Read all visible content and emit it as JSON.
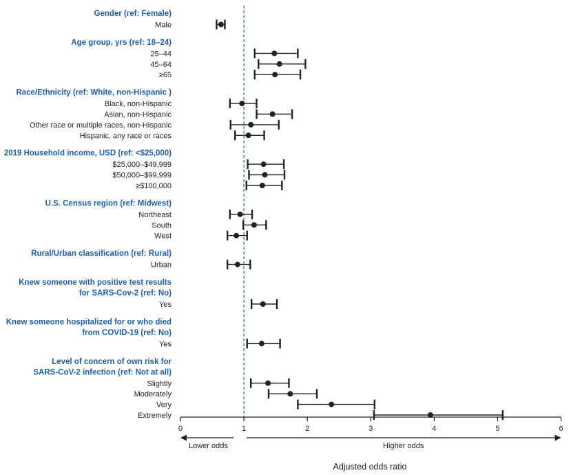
{
  "chart_data": {
    "type": "scatter",
    "subtype": "forest-plot",
    "xlabel": "Adjusted odds ratio",
    "xlim": [
      0,
      6
    ],
    "xticks": [
      0,
      1,
      2,
      3,
      4,
      5,
      6
    ],
    "reference_line": 1,
    "arrow_left_label": "Lower odds",
    "arrow_right_label": "Higher odds",
    "groups": [
      {
        "header": [
          "Gender (ref: Female)"
        ],
        "rows": [
          {
            "label": "Male",
            "or": 0.64,
            "lo": 0.57,
            "hi": 0.7
          }
        ]
      },
      {
        "header": [
          "Age group, yrs (ref: 18–24)"
        ],
        "rows": [
          {
            "label": "25–44",
            "or": 1.48,
            "lo": 1.17,
            "hi": 1.85
          },
          {
            "label": "45–64",
            "or": 1.56,
            "lo": 1.23,
            "hi": 1.97
          },
          {
            "label": "≥65",
            "or": 1.49,
            "lo": 1.17,
            "hi": 1.89
          }
        ]
      },
      {
        "header": [
          "Race/Ethnicity (ref: White, non-Hispanic )"
        ],
        "rows": [
          {
            "label": "Black, non-Hispanic",
            "or": 0.97,
            "lo": 0.78,
            "hi": 1.2
          },
          {
            "label": "Asian, non-Hispanic",
            "or": 1.45,
            "lo": 1.2,
            "hi": 1.76
          },
          {
            "label": "Other race or multiple races, non-Hispanic",
            "or": 1.11,
            "lo": 0.79,
            "hi": 1.55
          },
          {
            "label": "Hispanic, any race or races",
            "or": 1.07,
            "lo": 0.86,
            "hi": 1.32
          }
        ]
      },
      {
        "header": [
          "2019 Household income, USD (ref: <$25,000)"
        ],
        "rows": [
          {
            "label": "$25,000–$49,999",
            "or": 1.31,
            "lo": 1.06,
            "hi": 1.63
          },
          {
            "label": "$50,000–$99,999",
            "or": 1.33,
            "lo": 1.08,
            "hi": 1.64
          },
          {
            "label": "≥$100,000",
            "or": 1.29,
            "lo": 1.04,
            "hi": 1.6
          }
        ]
      },
      {
        "header": [
          "U.S. Census region (ref: Midwest)"
        ],
        "rows": [
          {
            "label": "Northeast",
            "or": 0.94,
            "lo": 0.78,
            "hi": 1.13
          },
          {
            "label": "South",
            "or": 1.16,
            "lo": 0.99,
            "hi": 1.35
          },
          {
            "label": "West",
            "or": 0.88,
            "lo": 0.74,
            "hi": 1.05
          }
        ]
      },
      {
        "header": [
          "Rural/Urban classification (ref: Rural)"
        ],
        "rows": [
          {
            "label": "Urban",
            "or": 0.9,
            "lo": 0.74,
            "hi": 1.1
          }
        ]
      },
      {
        "header": [
          "Knew someone with positive test results",
          "for SARS-Cov-2 (ref: No)"
        ],
        "rows": [
          {
            "label": "Yes",
            "or": 1.3,
            "lo": 1.12,
            "hi": 1.52
          }
        ]
      },
      {
        "header": [
          "Knew someone hospitalized for or who died",
          "from COVID-19 (ref: No)"
        ],
        "rows": [
          {
            "label": "Yes",
            "or": 1.28,
            "lo": 1.05,
            "hi": 1.57
          }
        ]
      },
      {
        "header": [
          "Level of concern of own risk for",
          "SARS-CoV-2 infection (ref: Not at all)"
        ],
        "rows": [
          {
            "label": "Slightly",
            "or": 1.38,
            "lo": 1.11,
            "hi": 1.71
          },
          {
            "label": "Moderately",
            "or": 1.73,
            "lo": 1.39,
            "hi": 2.15
          },
          {
            "label": "Very",
            "or": 2.38,
            "lo": 1.85,
            "hi": 3.06
          },
          {
            "label": "Extremely",
            "or": 3.94,
            "lo": 3.05,
            "hi": 5.08
          }
        ]
      }
    ]
  },
  "colors": {
    "header": "#1f5fa6",
    "reference_line": "#2a5f9e",
    "marks": "#222222"
  }
}
